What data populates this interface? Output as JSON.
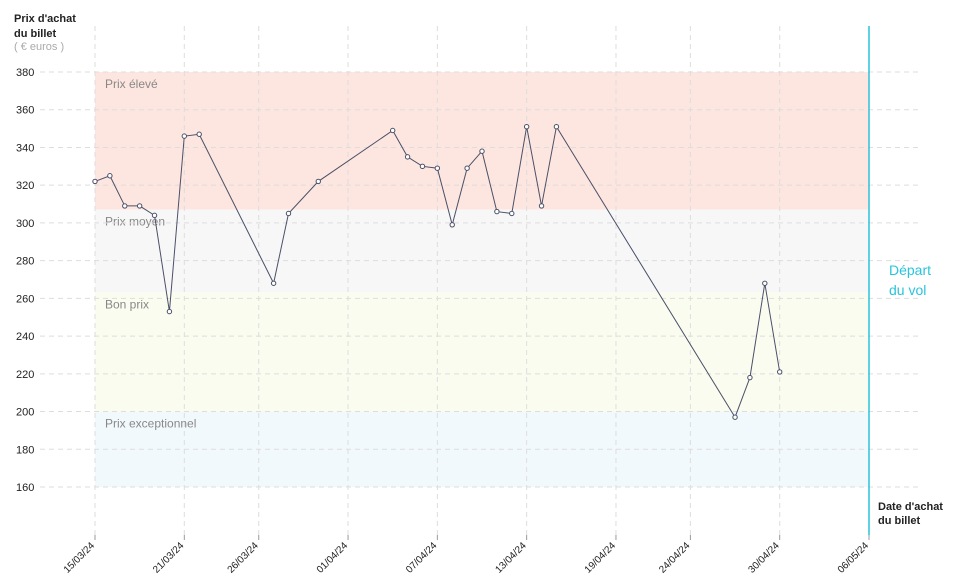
{
  "chart_data": {
    "type": "line",
    "y_title_line1": "Prix d'achat",
    "y_title_line2": "du billet",
    "y_unit": "( € euros )",
    "x_title_line1": "Date d'achat",
    "x_title_line2": "du billet",
    "departure_label_line1": "Départ",
    "departure_label_line2": "du vol",
    "x": [
      "15/03/24",
      "16/03/24",
      "17/03/24",
      "18/03/24",
      "19/03/24",
      "20/03/24",
      "21/03/24",
      "22/03/24",
      "27/03/24",
      "28/03/24",
      "30/03/24",
      "04/04/24",
      "05/04/24",
      "06/04/24",
      "07/04/24",
      "08/04/24",
      "09/04/24",
      "10/04/24",
      "11/04/24",
      "12/04/24",
      "13/04/24",
      "14/04/24",
      "15/04/24",
      "27/04/24",
      "28/04/24",
      "29/04/24",
      "30/04/24"
    ],
    "series": [
      {
        "color": "#4a5068",
        "values": [
          322,
          325,
          309,
          309,
          304,
          253,
          346,
          347,
          268,
          305,
          322,
          349,
          335,
          330,
          329,
          299,
          329,
          338,
          306,
          305,
          351,
          309,
          351,
          197,
          218,
          268,
          221
        ]
      }
    ],
    "bands": [
      {
        "label": "Prix élevé",
        "from": 307,
        "to": 380,
        "color": "#fde6df"
      },
      {
        "label": "Prix moyen",
        "from": 263,
        "to": 307,
        "color": "#f7f7f7"
      },
      {
        "label": "Bon prix",
        "from": 200,
        "to": 263,
        "color": "#fbfcf0"
      },
      {
        "label": "Prix exceptionnel",
        "from": 160,
        "to": 200,
        "color": "#f2f9fc"
      }
    ],
    "xlim": [
      "15/03/24",
      "06/05/24"
    ],
    "xticks": [
      "15/03/24",
      "21/03/24",
      "26/03/24",
      "01/04/24",
      "07/04/24",
      "13/04/24",
      "19/04/24",
      "24/04/24",
      "30/04/24",
      "06/05/24"
    ],
    "ylim": [
      160,
      380
    ],
    "yticks": [
      160,
      180,
      200,
      220,
      240,
      260,
      280,
      300,
      320,
      340,
      360,
      380
    ],
    "departure_color": "#29c4dc",
    "grid": true
  }
}
